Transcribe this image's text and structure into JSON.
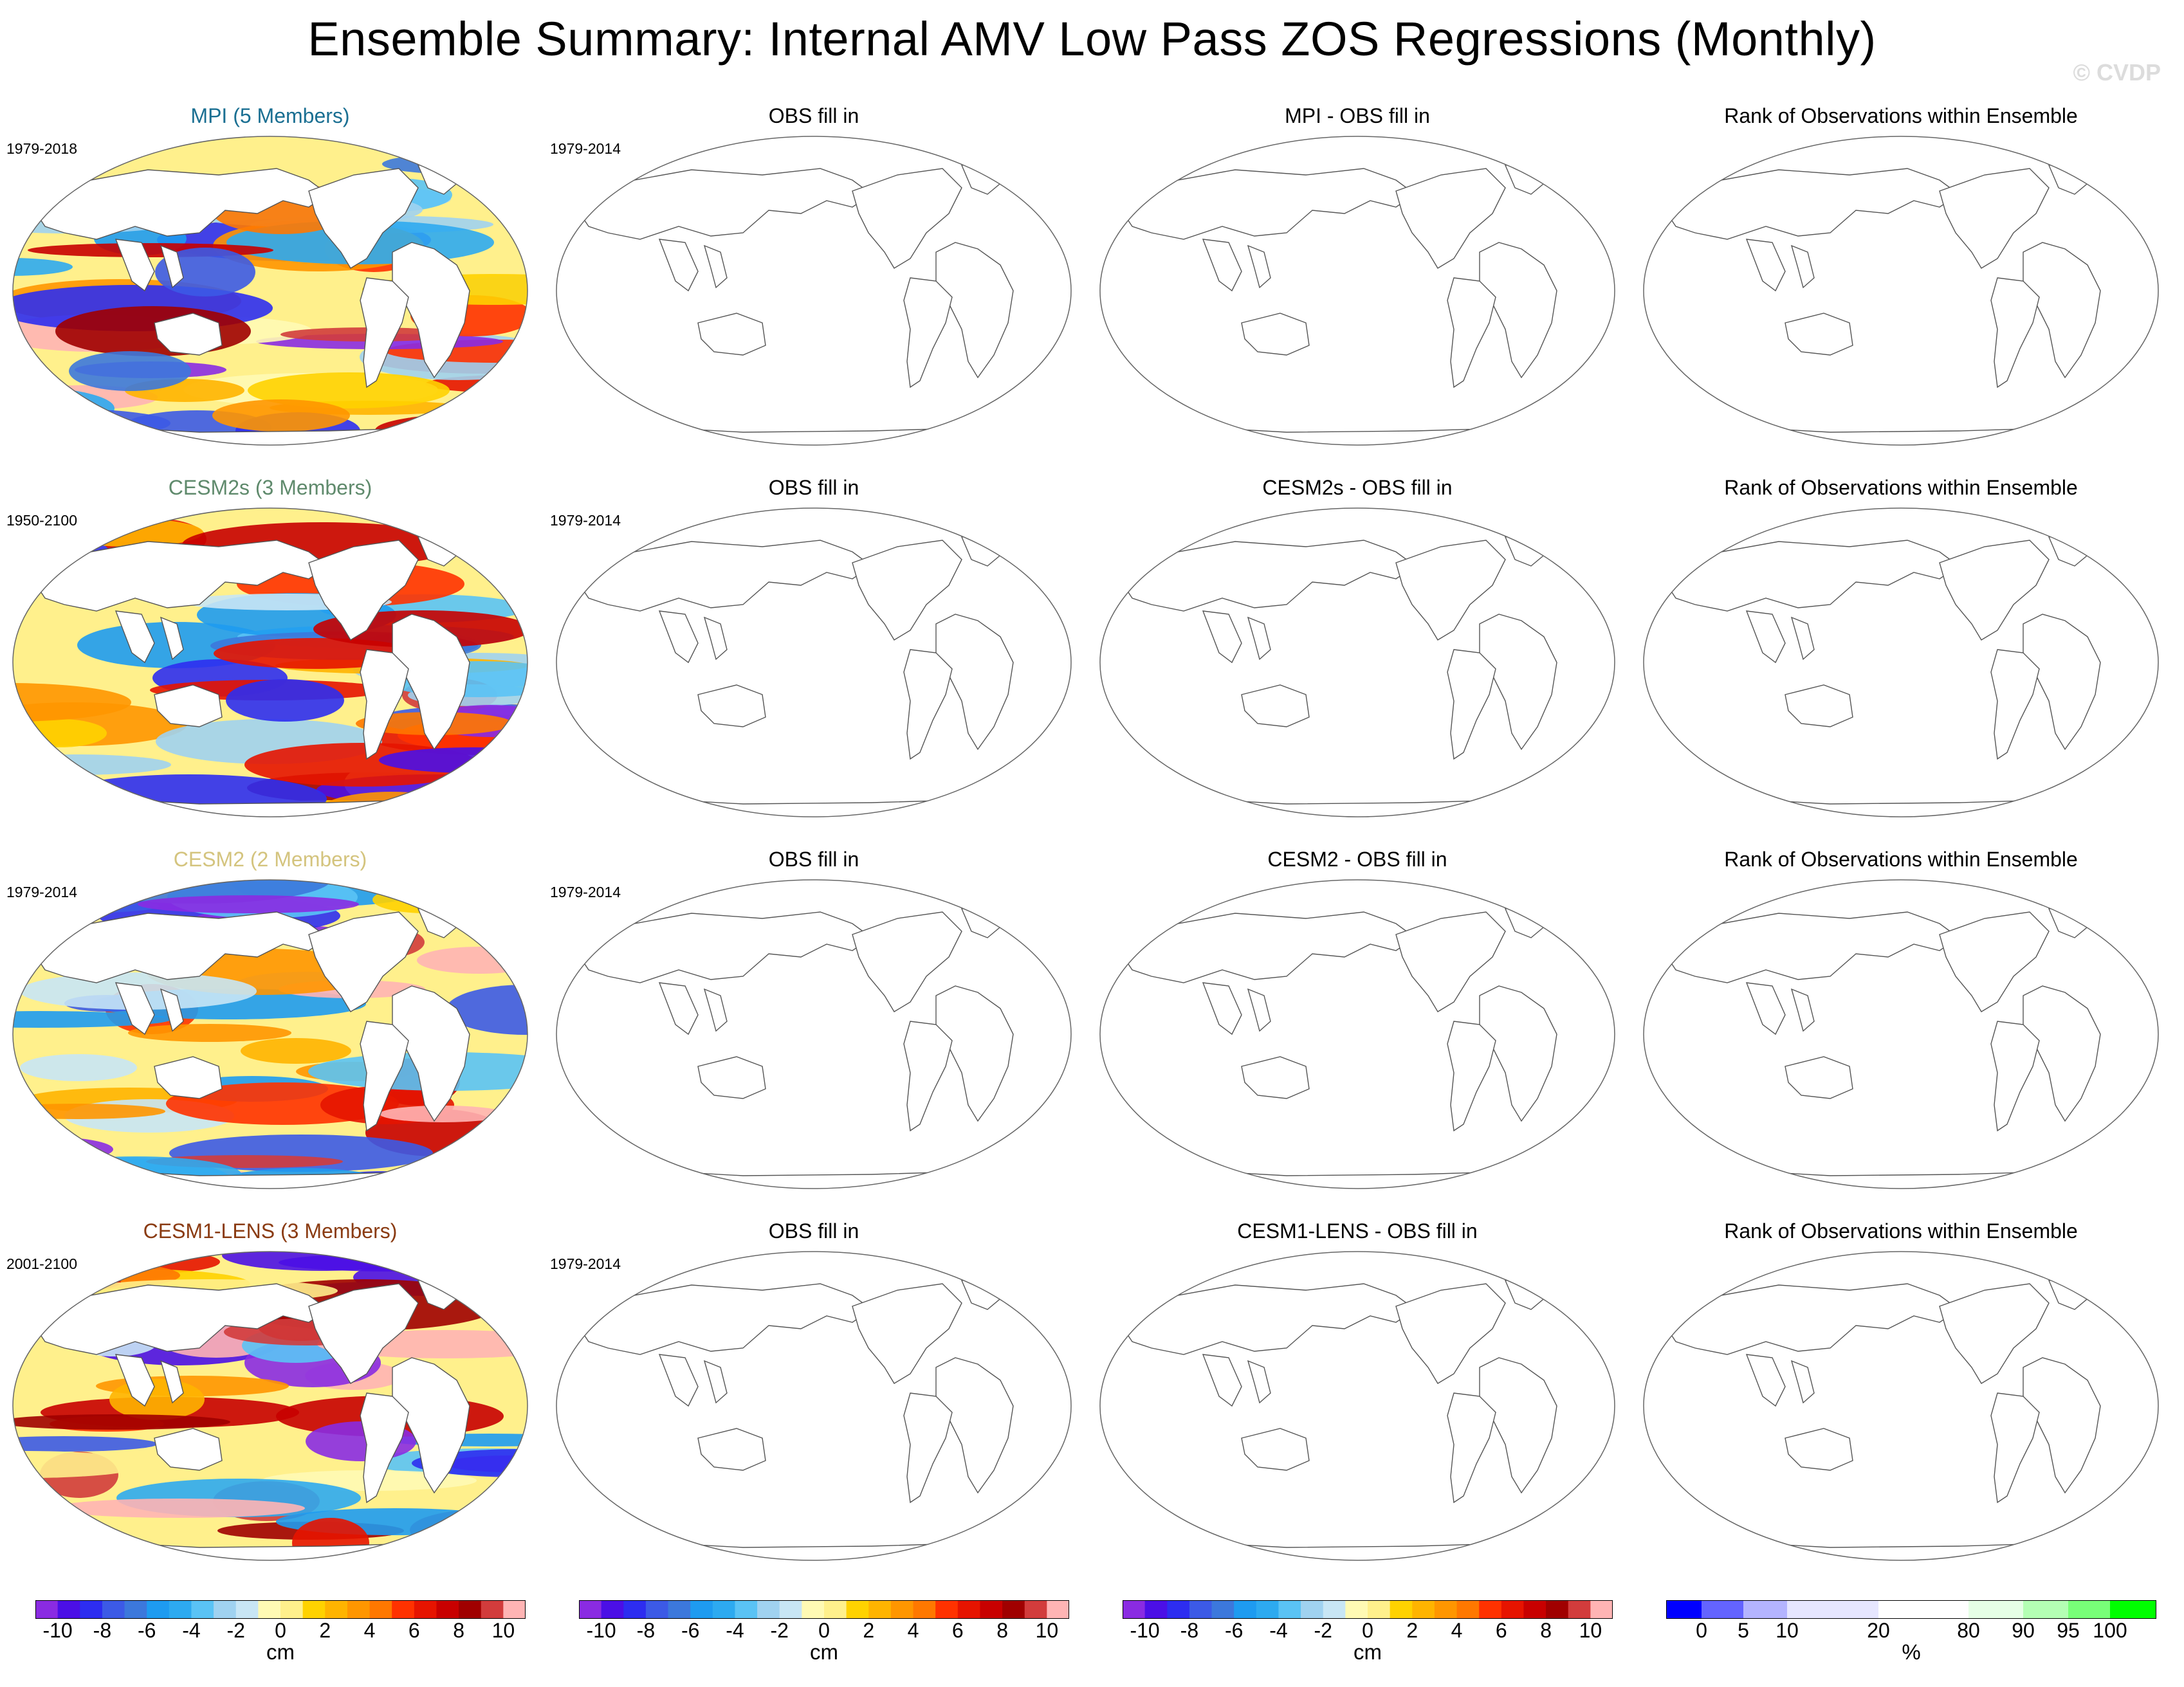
{
  "title": "Ensemble Summary: Internal AMV Low Pass ZOS Regressions (Monthly)",
  "watermark": "© CVDP",
  "rows": [
    {
      "model": "MPI (5 Members)",
      "model_color": "#1a6f92",
      "years": "1979-2018",
      "obs_title": "OBS fill in",
      "obs_years": "1979-2014",
      "diff_title": "MPI - OBS fill in",
      "rank_title": "Rank of Observations within Ensemble"
    },
    {
      "model": "CESM2s (3 Members)",
      "model_color": "#5f8a6c",
      "years": "1950-2100",
      "obs_title": "OBS fill in",
      "obs_years": "1979-2014",
      "diff_title": "CESM2s - OBS fill in",
      "rank_title": "Rank of Observations within Ensemble"
    },
    {
      "model": "CESM2 (2 Members)",
      "model_color": "#d4c47e",
      "years": "1979-2014",
      "obs_title": "OBS fill in",
      "obs_years": "1979-2014",
      "diff_title": "CESM2 - OBS fill in",
      "rank_title": "Rank of Observations within Ensemble"
    },
    {
      "model": "CESM1-LENS (3 Members)",
      "model_color": "#8a3b12",
      "years": "2001-2100",
      "obs_title": "OBS fill in",
      "obs_years": "1979-2014",
      "diff_title": "CESM1-LENS - OBS fill in",
      "rank_title": "Rank of Observations within Ensemble"
    }
  ],
  "chart_data": {
    "type": "heatmap",
    "description_panels": "4 rows x 4 columns of Robinson-projection world maps; column 1 shows model ensemble-mean regression, columns 2-4 are empty (no observations)",
    "zos_colorbar": {
      "unit": "cm",
      "levels": [
        -11,
        -10,
        -9,
        -8,
        -7,
        -6,
        -5,
        -4,
        -3,
        -2,
        -1,
        0,
        1,
        2,
        3,
        4,
        5,
        6,
        7,
        8,
        9,
        10,
        11
      ],
      "tick_labels": [
        "-10",
        "-8",
        "-6",
        "-4",
        "-2",
        "0",
        "2",
        "4",
        "6",
        "8",
        "10"
      ],
      "colors": [
        "#8a2be2",
        "#4b0fe6",
        "#2d2df0",
        "#3c5ae6",
        "#3c78dc",
        "#1e9bf0",
        "#2daaf0",
        "#5ac3f5",
        "#a0d2f0",
        "#c8e6f5",
        "#fffab4",
        "#fff08c",
        "#ffd200",
        "#ffb400",
        "#ff9600",
        "#ff7800",
        "#ff3200",
        "#e61400",
        "#c80000",
        "#a00000",
        "#d23c3c",
        "#ffb4b4"
      ]
    },
    "rank_colorbar": {
      "unit": "%",
      "tick_labels": [
        "0",
        "5",
        "10",
        "20",
        "80",
        "90",
        "95",
        "100"
      ],
      "colors": [
        "#0000ff",
        "#6464ff",
        "#b4b4ff",
        "#e6e6ff",
        "#ffffff",
        "#e6ffe6",
        "#b4ffb4",
        "#78ff78",
        "#00ff00"
      ]
    }
  }
}
